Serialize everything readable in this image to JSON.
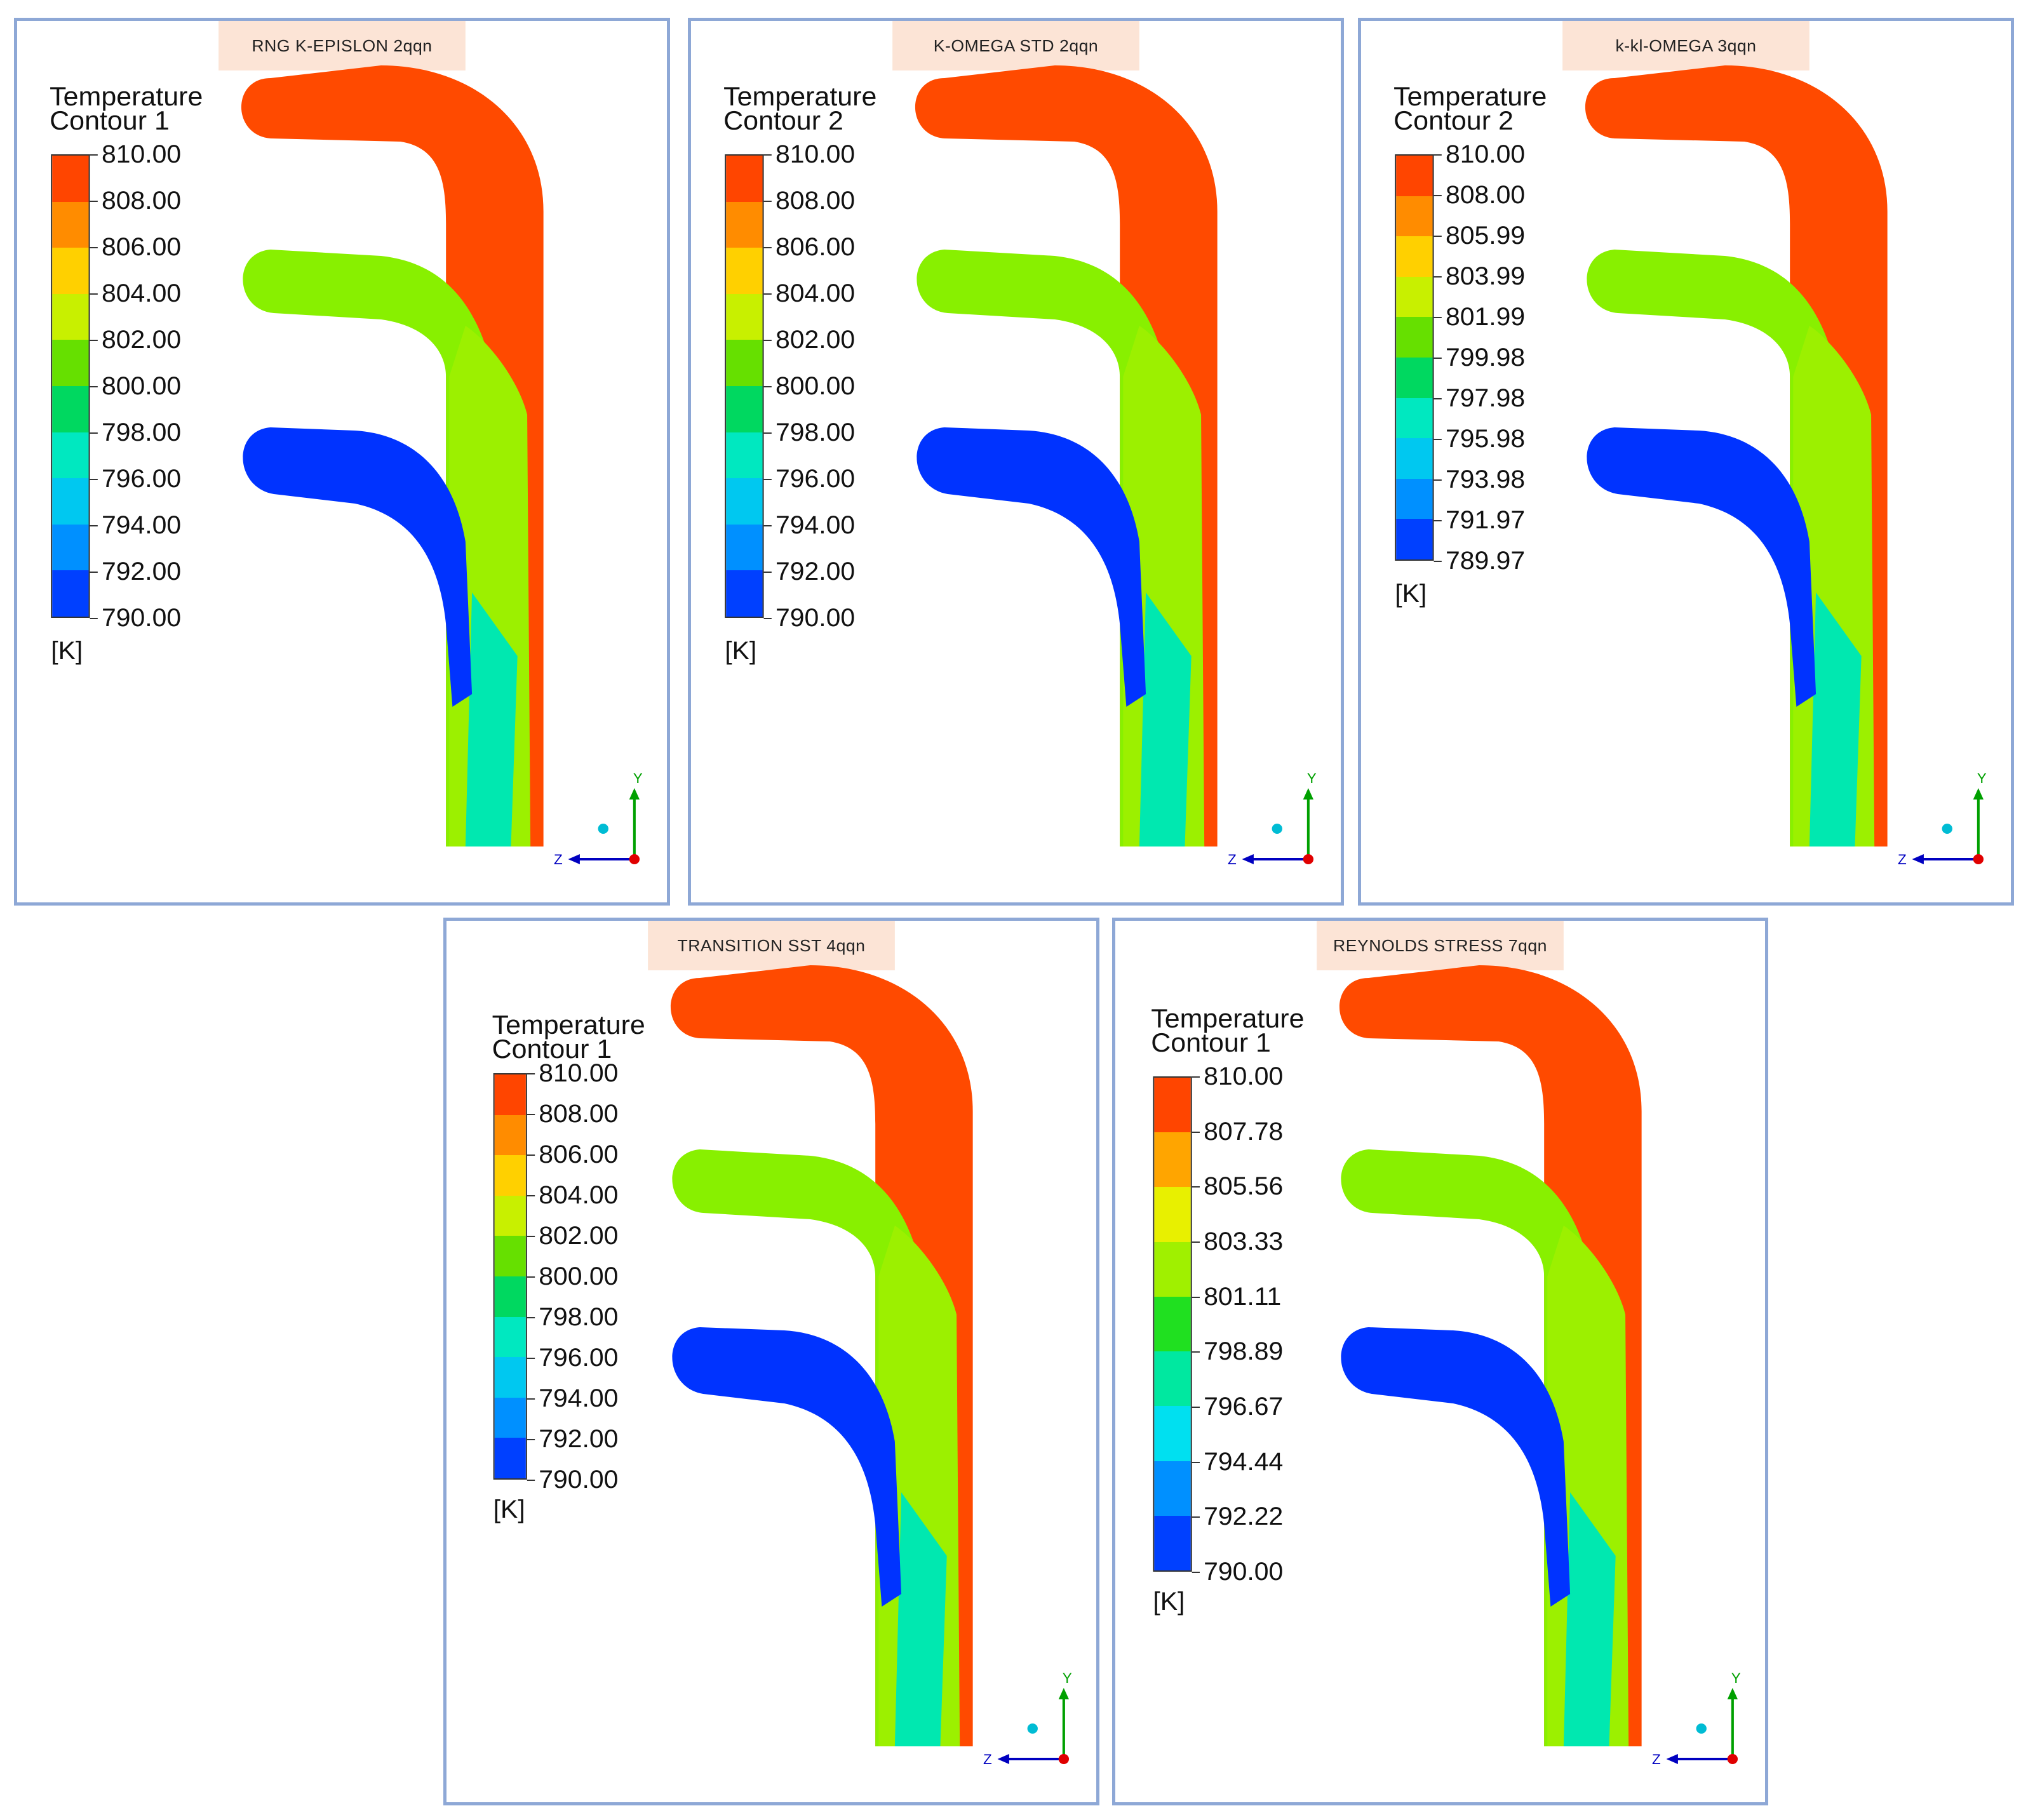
{
  "panels": [
    {
      "title": "RNG K-EPISLON  2qqn",
      "legend_title_line1": "Temperature",
      "legend_title_line2": "Contour 1",
      "labels": [
        "810.00",
        "808.00",
        "806.00",
        "804.00",
        "802.00",
        "800.00",
        "798.00",
        "796.00",
        "794.00",
        "792.00",
        "790.00"
      ],
      "unit": "[K]",
      "axis_y": "Y",
      "axis_z": "Z"
    },
    {
      "title": "K-OMEGA STD 2qqn",
      "legend_title_line1": "Temperature",
      "legend_title_line2": "Contour 2",
      "labels": [
        "810.00",
        "808.00",
        "806.00",
        "804.00",
        "802.00",
        "800.00",
        "798.00",
        "796.00",
        "794.00",
        "792.00",
        "790.00"
      ],
      "unit": "[K]",
      "axis_y": "Y",
      "axis_z": "Z"
    },
    {
      "title": "k-kl-OMEGA 3qqn",
      "legend_title_line1": "Temperature",
      "legend_title_line2": "Contour 2",
      "labels": [
        "810.00",
        "808.00",
        "805.99",
        "803.99",
        "801.99",
        "799.98",
        "797.98",
        "795.98",
        "793.98",
        "791.97",
        "789.97"
      ],
      "unit": "[K]",
      "axis_y": "Y",
      "axis_z": "Z"
    },
    {
      "title": "TRANSITION SST 4qqn",
      "legend_title_line1": "Temperature",
      "legend_title_line2": "Contour 1",
      "labels": [
        "810.00",
        "808.00",
        "806.00",
        "804.00",
        "802.00",
        "800.00",
        "798.00",
        "796.00",
        "794.00",
        "792.00",
        "790.00"
      ],
      "unit": "[K]",
      "axis_y": "Y",
      "axis_z": "Z"
    },
    {
      "title": "REYNOLDS STRESS 7qqn",
      "legend_title_line1": "Temperature",
      "legend_title_line2": "Contour 1",
      "labels": [
        "810.00",
        "807.78",
        "805.56",
        "803.33",
        "801.11",
        "798.89",
        "796.67",
        "794.44",
        "792.22",
        "790.00"
      ],
      "unit": "[K]",
      "axis_y": "Y",
      "axis_z": "Z"
    }
  ],
  "colors": {
    "hot": "#ff4a00",
    "mid": "#88f000",
    "cold": "#0033ff",
    "frame": "#8ea8d6",
    "title_bg": "#fce4d6"
  }
}
